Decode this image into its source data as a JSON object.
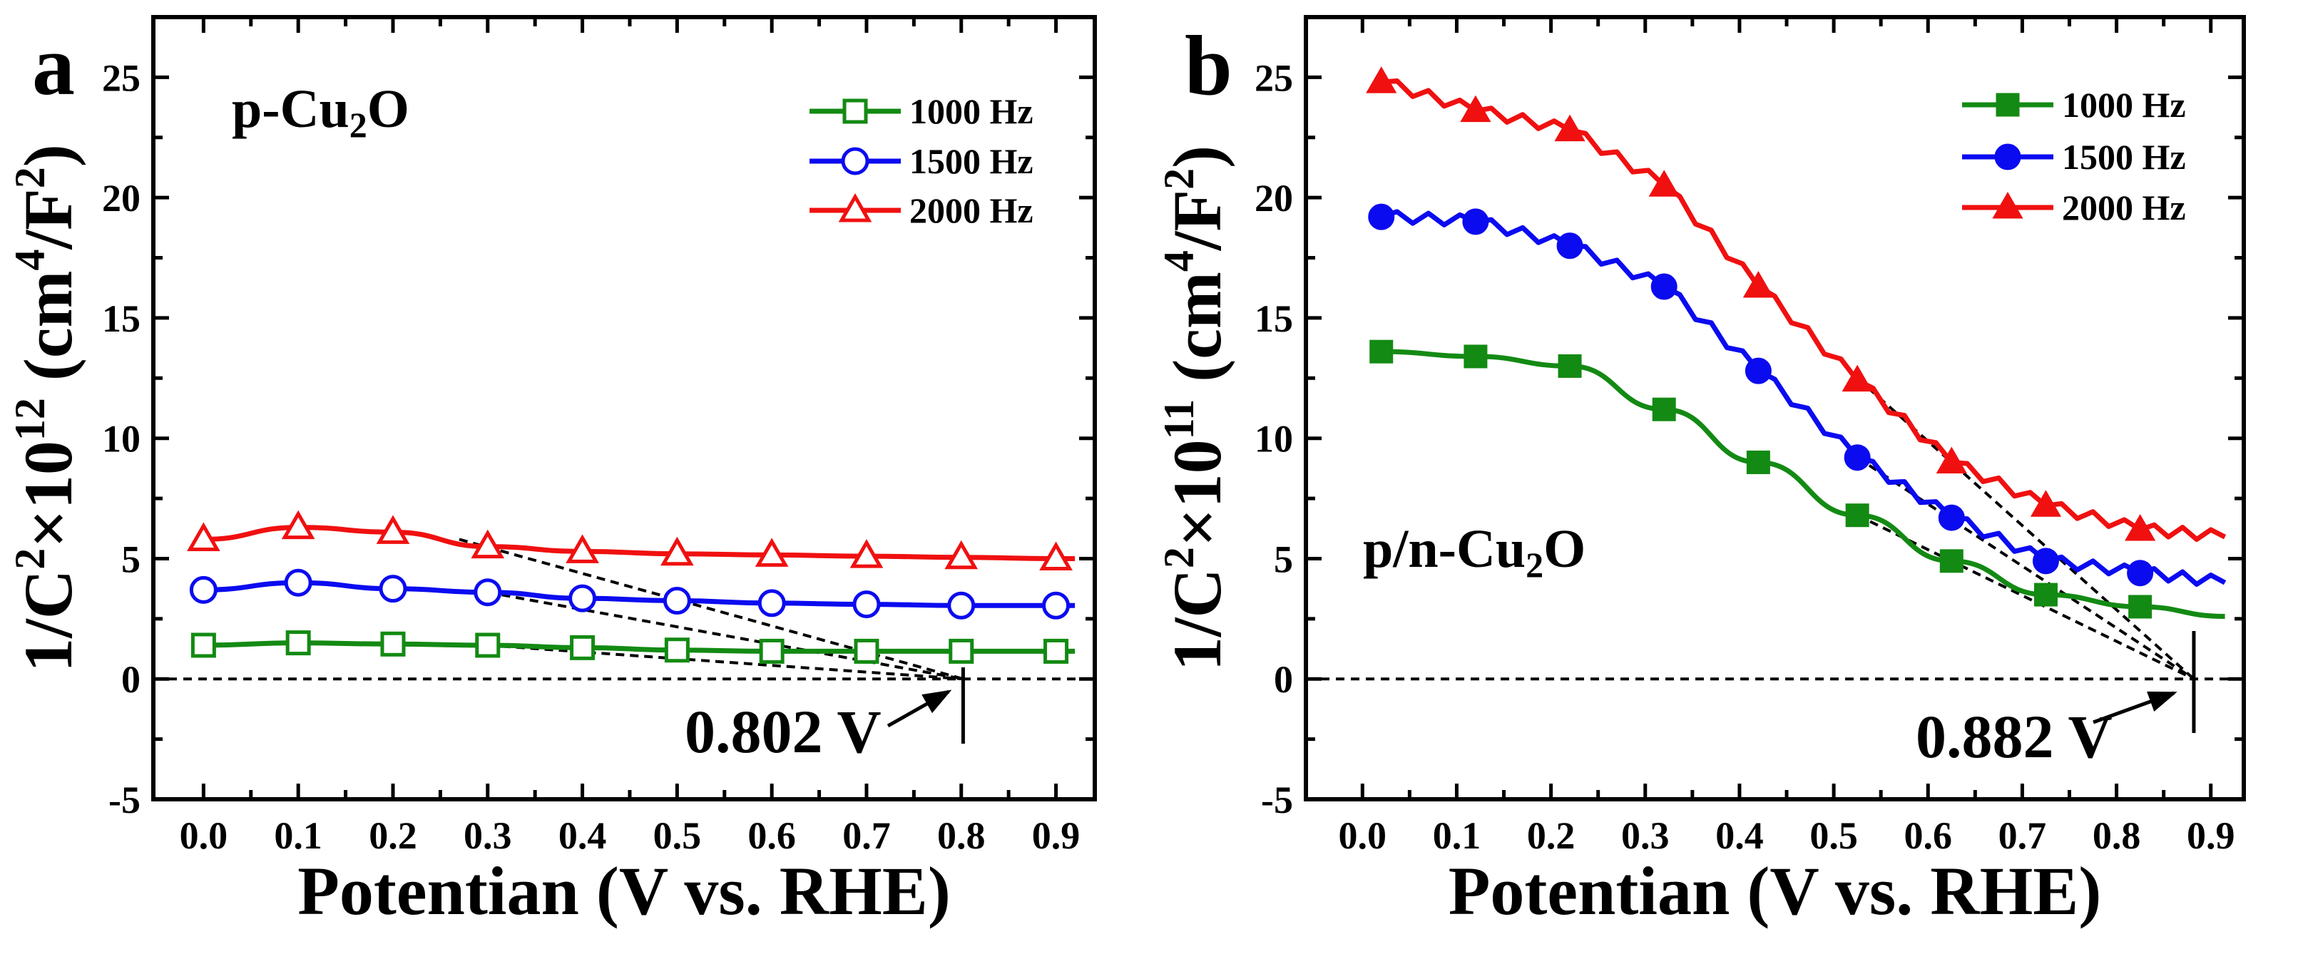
{
  "chart_data": [
    {
      "panel_label": "a",
      "type": "line",
      "sample_label": {
        "main": "p-Cu",
        "sub": "2",
        "end": "O"
      },
      "xlabel": "Potentian (V vs. RHE)",
      "ylabel_parts": [
        {
          "t": "1/C",
          "sup": false
        },
        {
          "t": "2",
          "sup": true
        },
        {
          "t": "×10",
          "sup": false
        },
        {
          "t": "12",
          "sup": true
        },
        {
          "t": " (cm",
          "sup": false
        },
        {
          "t": "4",
          "sup": true
        },
        {
          "t": "/F",
          "sup": false
        },
        {
          "t": "2",
          "sup": true
        },
        {
          "t": ")",
          "sup": false
        }
      ],
      "xlim": [
        -0.053,
        0.941
      ],
      "ylim": [
        -5,
        27.5
      ],
      "xticks": [
        "0.0",
        "0.1",
        "0.2",
        "0.3",
        "0.4",
        "0.5",
        "0.6",
        "0.7",
        "0.8",
        "0.9"
      ],
      "yticks": [
        "-5",
        "0",
        "5",
        "10",
        "15",
        "20",
        "25"
      ],
      "marker_fill": "open",
      "legend_position": "top-right",
      "series": [
        {
          "name": "1000 Hz",
          "color": "#138a13",
          "marker": "square",
          "x": [
            0.0,
            0.1,
            0.2,
            0.3,
            0.4,
            0.5,
            0.6,
            0.7,
            0.8,
            0.9
          ],
          "y": [
            1.4,
            1.5,
            1.45,
            1.4,
            1.3,
            1.2,
            1.15,
            1.15,
            1.15,
            1.15
          ],
          "line_end": [
            0.92,
            1.15
          ]
        },
        {
          "name": "1500 Hz",
          "color": "#0b0bf0",
          "marker": "circle",
          "x": [
            0.0,
            0.1,
            0.2,
            0.3,
            0.4,
            0.5,
            0.6,
            0.7,
            0.8,
            0.9
          ],
          "y": [
            3.7,
            4.0,
            3.75,
            3.6,
            3.35,
            3.25,
            3.15,
            3.1,
            3.05,
            3.05
          ],
          "line_end": [
            0.92,
            3.05
          ]
        },
        {
          "name": "2000 Hz",
          "color": "#f01010",
          "marker": "triangle",
          "x": [
            0.0,
            0.1,
            0.2,
            0.3,
            0.4,
            0.5,
            0.6,
            0.7,
            0.8,
            0.9
          ],
          "y": [
            5.8,
            6.3,
            6.1,
            5.5,
            5.3,
            5.2,
            5.15,
            5.1,
            5.05,
            5.0
          ],
          "line_end": [
            0.92,
            5.0
          ]
        }
      ],
      "tangents": [
        [
          0.27,
          5.8
        ],
        [
          0.3,
          3.6
        ],
        [
          0.3,
          1.4
        ]
      ],
      "intercept": 0.802,
      "intercept_label": "0.802 V"
    },
    {
      "panel_label": "b",
      "type": "line",
      "sample_label": {
        "main": "p/n-Cu",
        "sub": "2",
        "end": "O"
      },
      "xlabel": "Potentian (V vs. RHE)",
      "ylabel_parts": [
        {
          "t": "1/C",
          "sup": false
        },
        {
          "t": "2",
          "sup": true
        },
        {
          "t": "×10",
          "sup": false
        },
        {
          "t": "11",
          "sup": true
        },
        {
          "t": " (cm",
          "sup": false
        },
        {
          "t": "4",
          "sup": true
        },
        {
          "t": "/F",
          "sup": false
        },
        {
          "t": "2",
          "sup": true
        },
        {
          "t": ")",
          "sup": false
        }
      ],
      "xlim": [
        -0.06,
        0.935
      ],
      "ylim": [
        -5,
        27.5
      ],
      "xticks": [
        "0.0",
        "0.1",
        "0.2",
        "0.3",
        "0.4",
        "0.5",
        "0.6",
        "0.7",
        "0.8",
        "0.9"
      ],
      "yticks": [
        "-5",
        "0",
        "5",
        "10",
        "15",
        "20",
        "25"
      ],
      "marker_fill": "filled",
      "legend_position": "top-right",
      "series": [
        {
          "name": "1000 Hz",
          "color": "#138a13",
          "marker": "square",
          "x": [
            0.02,
            0.12,
            0.22,
            0.32,
            0.42,
            0.525,
            0.625,
            0.725,
            0.825
          ],
          "y": [
            13.6,
            13.4,
            13.0,
            11.2,
            9.0,
            6.8,
            4.9,
            3.5,
            3.0
          ],
          "line_end": [
            0.915,
            2.6
          ]
        },
        {
          "name": "1500 Hz",
          "color": "#0b0bf0",
          "marker": "circle",
          "x": [
            0.02,
            0.12,
            0.22,
            0.32,
            0.42,
            0.525,
            0.625,
            0.725,
            0.825
          ],
          "y": [
            19.2,
            19.0,
            18.0,
            16.3,
            12.8,
            9.2,
            6.7,
            4.9,
            4.4
          ],
          "line_end": [
            0.915,
            4.0
          ]
        },
        {
          "name": "2000 Hz",
          "color": "#f01010",
          "marker": "triangle",
          "x": [
            0.02,
            0.12,
            0.22,
            0.32,
            0.42,
            0.525,
            0.625,
            0.725,
            0.825
          ],
          "y": [
            24.8,
            23.6,
            22.8,
            20.5,
            16.3,
            12.4,
            9.0,
            7.2,
            6.2
          ],
          "line_end": [
            0.915,
            5.9
          ]
        }
      ],
      "tangents": [
        [
          0.525,
          12.5
        ],
        [
          0.525,
          9.2
        ],
        [
          0.525,
          6.8
        ]
      ],
      "intercept": 0.882,
      "intercept_label": "0.882 V"
    }
  ]
}
